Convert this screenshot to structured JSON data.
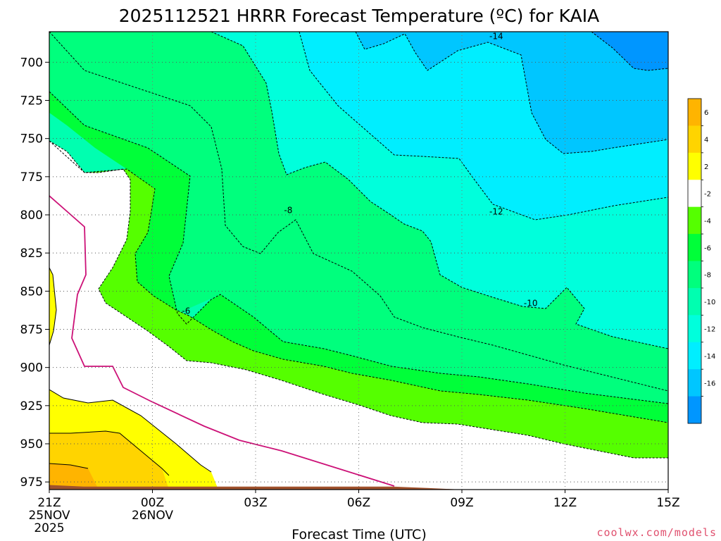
{
  "chart_data": {
    "type": "contour",
    "title": "2025112521 HRRR Forecast Temperature (ºC) for KAIA",
    "xlabel": "Forecast Time (UTC)",
    "x_ticks": [
      {
        "hour": 0,
        "label": "21Z",
        "sub": [
          "25NOV",
          "2025"
        ]
      },
      {
        "hour": 3,
        "label": "00Z",
        "sub": [
          "26NOV"
        ]
      },
      {
        "hour": 6,
        "label": "03Z",
        "sub": []
      },
      {
        "hour": 9,
        "label": "06Z",
        "sub": []
      },
      {
        "hour": 12,
        "label": "09Z",
        "sub": []
      },
      {
        "hour": 15,
        "label": "12Z",
        "sub": []
      },
      {
        "hour": 18,
        "label": "15Z",
        "sub": []
      }
    ],
    "xlim": [
      0,
      18
    ],
    "ylim": [
      980,
      680
    ],
    "y_ticks": [
      700,
      725,
      750,
      775,
      800,
      825,
      850,
      875,
      900,
      925,
      950,
      975
    ],
    "grid": "dotted",
    "contour_labels": [
      {
        "text": "-14",
        "hour": 13.0,
        "p": 683
      },
      {
        "text": "-12",
        "hour": 13.0,
        "p": 798
      },
      {
        "text": "-10",
        "hour": 14.0,
        "p": 858
      },
      {
        "text": "-8",
        "hour": 6.95,
        "p": 797
      },
      {
        "text": "-6",
        "hour": 3.98,
        "p": 863
      }
    ],
    "ground_ranges": [
      [
        977,
        978,
        978,
        978,
        978,
        978,
        978,
        978,
        978,
        978,
        978,
        979,
        980,
        981,
        982,
        983,
        984,
        984,
        985
      ]
    ],
    "colorbar": {
      "labels": [
        "6",
        "4",
        "2",
        "-2",
        "-4",
        "-6",
        "-8",
        "-10",
        "-12",
        "-14",
        "-16"
      ],
      "colors": [
        "#ffb400",
        "#ffd400",
        "#ffff00",
        "#ffffff",
        "#55ff00",
        "#00ff39",
        "#00ff7d",
        "#00ffb0",
        "#00ffdc",
        "#00eeff",
        "#00c6ff",
        "#0096ff"
      ]
    },
    "fills": {
      "warm": "#ffd400",
      "warm_low": "#ffb400",
      "green_lo": "#55ff00",
      "green_mid": "#00ff39",
      "green_hi": "#00ff7d",
      "teal": "#00ffb0",
      "cyan": "#00ffdc",
      "sky": "#00eeff",
      "blue": "#00c6ff",
      "deep_blue": "#0096ff",
      "ground": "#a0522d",
      "freeze_line": "#cc1177"
    }
  },
  "credit": "coolwx.com/models"
}
